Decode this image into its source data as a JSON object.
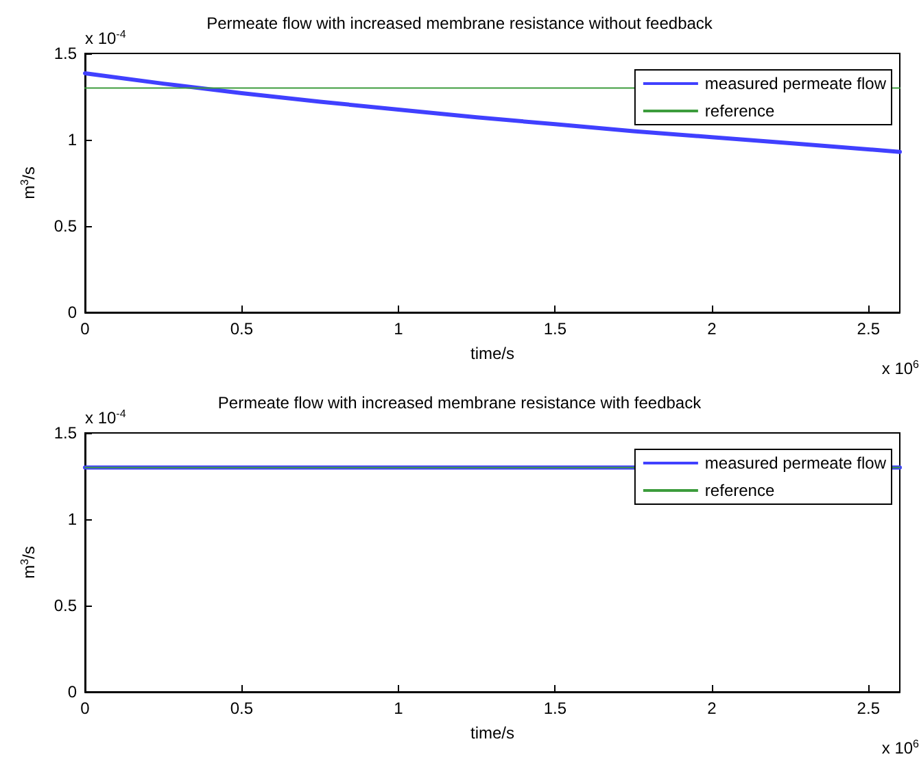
{
  "chart_data": [
    {
      "type": "line",
      "title": "Permeate flow with increased membrane resistance without feedback",
      "xlabel": "time/s",
      "ylabel": "m$^{3}$/s",
      "annotations": [
        "x 10$^{-4}$",
        "x 10$^{6}$"
      ],
      "xlim": [
        0,
        2.6
      ],
      "xticks": [
        0,
        0.5,
        1,
        1.5,
        2,
        2.5
      ],
      "ylim": [
        0,
        1.5
      ],
      "yticks": [
        0,
        0.5,
        1,
        1.5
      ],
      "legend": "top right",
      "grid": false,
      "series": [
        {
          "name": "measured permeate flow",
          "color": "#4040ff",
          "x": [
            0,
            0.25,
            0.5,
            0.75,
            1,
            1.25,
            1.5,
            1.75,
            2,
            2.25,
            2.6
          ],
          "values": [
            1.385,
            1.325,
            1.27,
            1.22,
            1.175,
            1.13,
            1.09,
            1.05,
            1.015,
            0.98,
            0.93
          ]
        },
        {
          "name": "reference",
          "color": "#3c9c3c",
          "x": [
            0,
            2.6
          ],
          "values": [
            1.3,
            1.3
          ]
        }
      ]
    },
    {
      "type": "line",
      "title": "Permeate flow with increased membrane resistance with feedback",
      "xlabel": "time/s",
      "ylabel": "m$^{3}$/s",
      "annotations": [
        "x 10$^{-4}$",
        "x 10$^{6}$"
      ],
      "xlim": [
        0,
        2.6
      ],
      "xticks": [
        0,
        0.5,
        1,
        1.5,
        2,
        2.5
      ],
      "ylim": [
        0,
        1.5
      ],
      "yticks": [
        0,
        0.5,
        1,
        1.5
      ],
      "legend": "top right",
      "grid": false,
      "series": [
        {
          "name": "measured permeate flow",
          "color": "#4040ff",
          "x": [
            0,
            2.6
          ],
          "values": [
            1.3,
            1.3
          ]
        },
        {
          "name": "reference",
          "color": "#3c9c3c",
          "x": [
            0,
            2.6
          ],
          "values": [
            1.3,
            1.3
          ]
        }
      ]
    }
  ]
}
